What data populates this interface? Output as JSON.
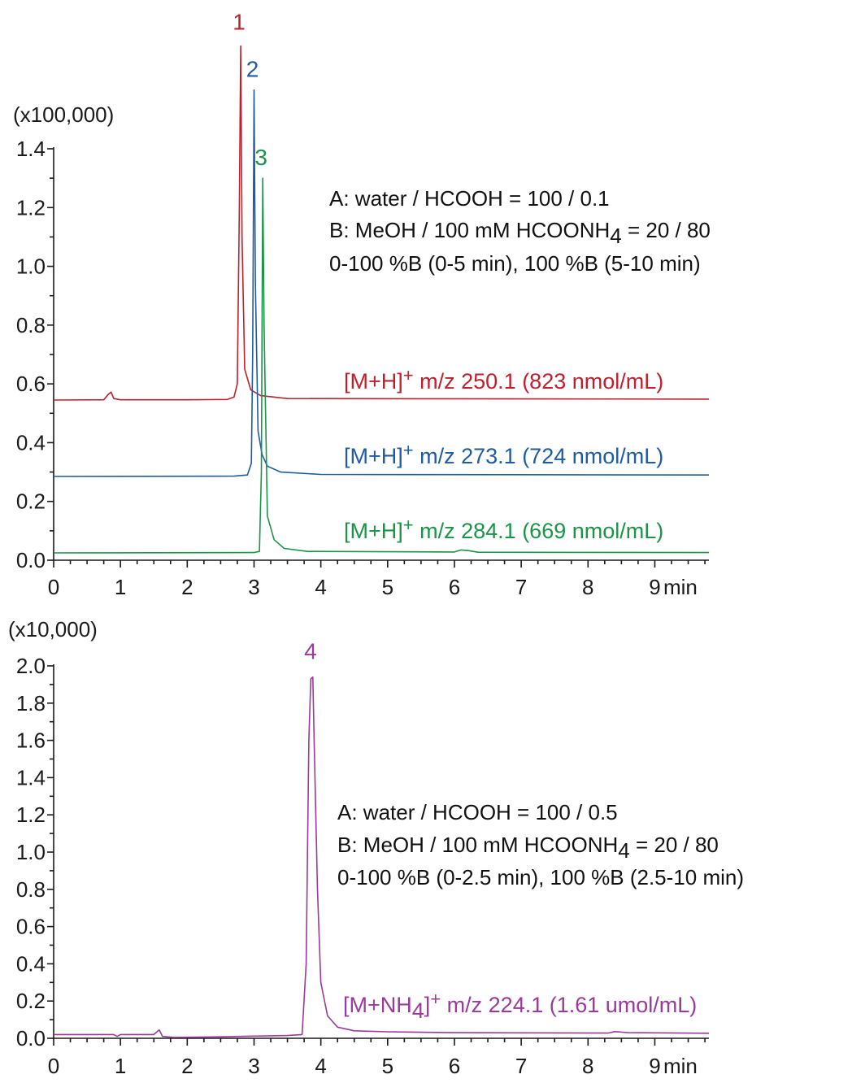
{
  "chart_data": [
    {
      "type": "line",
      "scale_label": "(x100,000)",
      "x_unit": "min",
      "xlim": [
        0,
        10
      ],
      "ylim": [
        0,
        1.4
      ],
      "x_ticks": [
        "0",
        "1",
        "2",
        "3",
        "4",
        "5",
        "6",
        "7",
        "8",
        "9"
      ],
      "y_ticks": [
        "0.0",
        "0.2",
        "0.4",
        "0.6",
        "0.8",
        "1.0",
        "1.2",
        "1.4"
      ],
      "conditions": [
        {
          "prefix": "A: water / HCOOH = 100 / 0.1",
          "sub": "",
          "suffix": ""
        },
        {
          "prefix": "B: MeOH / 100 mM HCOONH",
          "sub": "4",
          "suffix": " = 20 / 80"
        },
        {
          "prefix": "0-100 %B (0-5 min), 100 %B (5-10 min)",
          "sub": "",
          "suffix": ""
        }
      ],
      "series": [
        {
          "name": "[M+H]+ m/z 250.1 (823 nmol/mL)",
          "label_main": "[M+H]",
          "label_sup": "+",
          "label_rest": " m/z 250.1 (823 nmol/mL)",
          "peak_label": "1",
          "color": "#c0202e",
          "baseline": 0.545,
          "peak_x": 2.8,
          "peak_y": 1.75,
          "points": [
            [
              0,
              0.545
            ],
            [
              0.75,
              0.546
            ],
            [
              0.82,
              0.565
            ],
            [
              0.86,
              0.572
            ],
            [
              0.9,
              0.55
            ],
            [
              1.0,
              0.546
            ],
            [
              2.0,
              0.546
            ],
            [
              2.6,
              0.547
            ],
            [
              2.7,
              0.555
            ],
            [
              2.75,
              0.6
            ],
            [
              2.78,
              1.2
            ],
            [
              2.8,
              1.75
            ],
            [
              2.82,
              1.1
            ],
            [
              2.86,
              0.65
            ],
            [
              2.95,
              0.58
            ],
            [
              3.1,
              0.56
            ],
            [
              3.5,
              0.55
            ],
            [
              10,
              0.548
            ]
          ]
        },
        {
          "name": "[M+H]+ m/z 273.1 (724 nmol/mL)",
          "label_main": "[M+H]",
          "label_sup": "+",
          "label_rest": " m/z 273.1 (724 nmol/mL)",
          "peak_label": "2",
          "color": "#1f5ba0",
          "baseline": 0.285,
          "peak_x": 3.0,
          "peak_y": 1.6,
          "points": [
            [
              0,
              0.285
            ],
            [
              2.7,
              0.286
            ],
            [
              2.9,
              0.29
            ],
            [
              2.96,
              0.33
            ],
            [
              2.98,
              0.7
            ],
            [
              3.0,
              1.6
            ],
            [
              3.02,
              0.95
            ],
            [
              3.06,
              0.44
            ],
            [
              3.12,
              0.36
            ],
            [
              3.2,
              0.32
            ],
            [
              3.4,
              0.3
            ],
            [
              4.0,
              0.292
            ],
            [
              10,
              0.29
            ]
          ]
        },
        {
          "name": "[M+H]+ m/z 284.1 (669 nmol/mL)",
          "label_main": "[M+H]",
          "label_sup": "+",
          "label_rest": " m/z 284.1 (669 nmol/mL)",
          "peak_label": "3",
          "color": "#1b9448",
          "baseline": 0.025,
          "peak_x": 3.13,
          "peak_y": 1.3,
          "points": [
            [
              0,
              0.025
            ],
            [
              3.0,
              0.026
            ],
            [
              3.08,
              0.03
            ],
            [
              3.11,
              0.3
            ],
            [
              3.13,
              1.3
            ],
            [
              3.15,
              0.8
            ],
            [
              3.2,
              0.15
            ],
            [
              3.3,
              0.07
            ],
            [
              3.45,
              0.04
            ],
            [
              3.8,
              0.03
            ],
            [
              6.0,
              0.028
            ],
            [
              6.1,
              0.035
            ],
            [
              6.2,
              0.033
            ],
            [
              6.35,
              0.027
            ],
            [
              10,
              0.026
            ]
          ]
        }
      ]
    },
    {
      "type": "line",
      "scale_label": "(x10,000)",
      "x_unit": "min",
      "xlim": [
        0,
        10
      ],
      "ylim": [
        0,
        2.0
      ],
      "x_ticks": [
        "0",
        "1",
        "2",
        "3",
        "4",
        "5",
        "6",
        "7",
        "8",
        "9"
      ],
      "y_ticks": [
        "0.0",
        "0.2",
        "0.4",
        "0.6",
        "0.8",
        "1.0",
        "1.2",
        "1.4",
        "1.6",
        "1.8",
        "2.0"
      ],
      "conditions": [
        {
          "prefix": "A: water / HCOOH = 100 / 0.5",
          "sub": "",
          "suffix": ""
        },
        {
          "prefix": "B: MeOH / 100 mM HCOONH",
          "sub": "4",
          "suffix": " = 20 / 80"
        },
        {
          "prefix": "0-100 %B (0-2.5 min), 100 %B (2.5-10 min)",
          "sub": "",
          "suffix": ""
        }
      ],
      "series": [
        {
          "name": "[M+NH4]+ m/z 224.1 (1.61 umol/mL)",
          "label_main": "[M+NH",
          "label_sub": "4",
          "label_close": "]",
          "label_sup": "+",
          "label_rest": " m/z 224.1 (1.61 umol/mL)",
          "peak_label": "4",
          "color": "#9b3a9b",
          "baseline": 0.02,
          "peak_x": 3.87,
          "peak_y": 1.94,
          "points": [
            [
              0,
              0.02
            ],
            [
              0.9,
              0.02
            ],
            [
              0.95,
              0.01
            ],
            [
              1.0,
              0.02
            ],
            [
              1.5,
              0.02
            ],
            [
              1.58,
              0.045
            ],
            [
              1.63,
              0.01
            ],
            [
              1.8,
              0.005
            ],
            [
              2.5,
              0.008
            ],
            [
              3.0,
              0.012
            ],
            [
              3.5,
              0.015
            ],
            [
              3.72,
              0.02
            ],
            [
              3.78,
              0.4
            ],
            [
              3.82,
              1.6
            ],
            [
              3.85,
              1.93
            ],
            [
              3.88,
              1.94
            ],
            [
              3.9,
              1.6
            ],
            [
              3.95,
              0.8
            ],
            [
              4.0,
              0.3
            ],
            [
              4.1,
              0.12
            ],
            [
              4.25,
              0.06
            ],
            [
              4.5,
              0.04
            ],
            [
              5.0,
              0.035
            ],
            [
              6.0,
              0.03
            ],
            [
              8.3,
              0.028
            ],
            [
              8.4,
              0.036
            ],
            [
              8.6,
              0.03
            ],
            [
              10,
              0.027
            ]
          ]
        }
      ]
    }
  ]
}
